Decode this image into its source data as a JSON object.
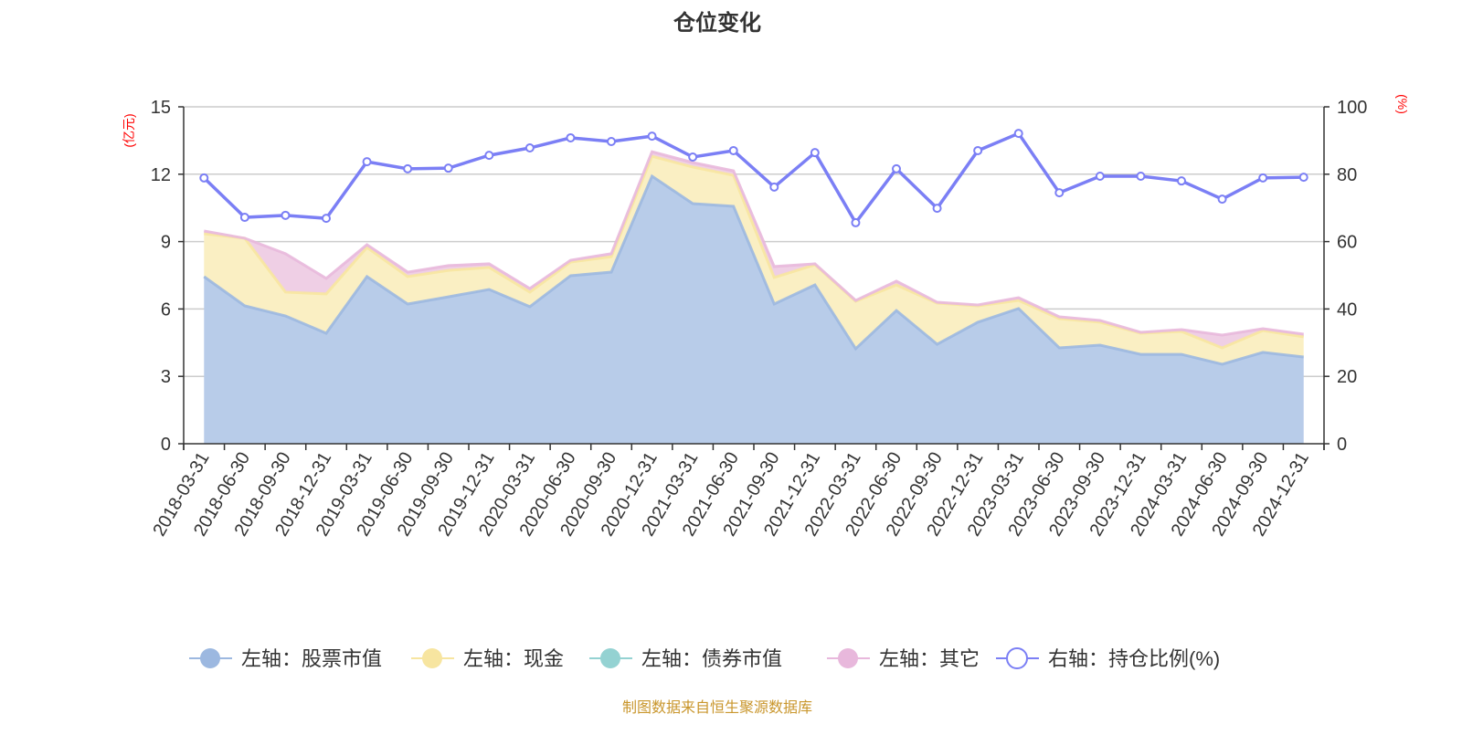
{
  "chart_data": {
    "type": "area",
    "title": "仓位变化",
    "left_axis_label": "(亿元)",
    "right_axis_label": "(%)",
    "left_ylim": [
      0,
      15
    ],
    "left_ticks": [
      "0",
      "3",
      "6",
      "9",
      "12",
      "15"
    ],
    "right_ylim": [
      0,
      100
    ],
    "right_ticks": [
      "0",
      "20",
      "40",
      "60",
      "80",
      "100"
    ],
    "grid": true,
    "legend_position": "bottom",
    "categories": [
      "2018-03-31",
      "2018-06-30",
      "2018-09-30",
      "2018-12-31",
      "2019-03-31",
      "2019-06-30",
      "2019-09-30",
      "2019-12-31",
      "2020-03-31",
      "2020-06-30",
      "2020-09-30",
      "2020-12-31",
      "2021-03-31",
      "2021-06-30",
      "2021-09-30",
      "2021-12-31",
      "2022-03-31",
      "2022-06-30",
      "2022-09-30",
      "2022-12-31",
      "2023-03-31",
      "2023-06-30",
      "2023-09-30",
      "2023-12-31",
      "2024-03-31",
      "2024-06-30",
      "2024-09-30",
      "2024-12-31"
    ],
    "series": [
      {
        "name": "左轴：股票市值",
        "axis": "left",
        "stacked": true,
        "color": "#9cb8e0",
        "values": [
          7.44,
          6.14,
          5.69,
          4.92,
          7.44,
          6.22,
          6.54,
          6.87,
          6.1,
          7.48,
          7.64,
          11.91,
          10.69,
          10.57,
          6.22,
          7.07,
          4.23,
          5.93,
          4.43,
          5.41,
          6.02,
          4.27,
          4.39,
          3.98,
          3.98,
          3.54,
          4.07,
          3.86
        ]
      },
      {
        "name": "左轴：现金",
        "axis": "left",
        "stacked": true,
        "color": "#f7e5a0",
        "values": [
          1.91,
          3.01,
          1.06,
          1.75,
          1.3,
          1.22,
          1.18,
          0.98,
          0.65,
          0.61,
          0.69,
          0.89,
          1.63,
          1.38,
          1.18,
          0.9,
          2.11,
          1.14,
          1.83,
          0.73,
          0.36,
          1.3,
          1.02,
          0.94,
          1.02,
          0.73,
          0.97,
          0.9
        ]
      },
      {
        "name": "左轴：债券市值",
        "axis": "left",
        "stacked": true,
        "color": "#94d2d2",
        "values": [
          0,
          0,
          0,
          0,
          0,
          0,
          0,
          0,
          0,
          0,
          0,
          0,
          0,
          0,
          0,
          0,
          0,
          0,
          0,
          0,
          0,
          0,
          0,
          0,
          0,
          0,
          0,
          0
        ]
      },
      {
        "name": "左轴：其它",
        "axis": "left",
        "stacked": true,
        "color": "#e8b8dc",
        "values": [
          0.12,
          0.0,
          1.71,
          0.69,
          0.12,
          0.2,
          0.21,
          0.16,
          0.16,
          0.08,
          0.13,
          0.2,
          0.2,
          0.2,
          0.49,
          0.04,
          0.04,
          0.17,
          0.04,
          0.04,
          0.12,
          0.08,
          0.08,
          0.04,
          0.08,
          0.57,
          0.08,
          0.12
        ]
      },
      {
        "name": "右轴：持仓比例(%)",
        "axis": "right",
        "type": "line",
        "color": "#7b7ff5",
        "values": [
          78.9,
          67.2,
          67.8,
          66.9,
          83.7,
          81.6,
          81.8,
          85.6,
          87.8,
          90.8,
          89.7,
          91.3,
          85.1,
          87.0,
          76.2,
          86.4,
          65.6,
          81.6,
          69.9,
          87.0,
          92.1,
          74.5,
          79.4,
          79.4,
          78.0,
          72.6,
          78.9,
          79.1
        ]
      }
    ],
    "source": "制图数据来自恒生聚源数据库"
  }
}
